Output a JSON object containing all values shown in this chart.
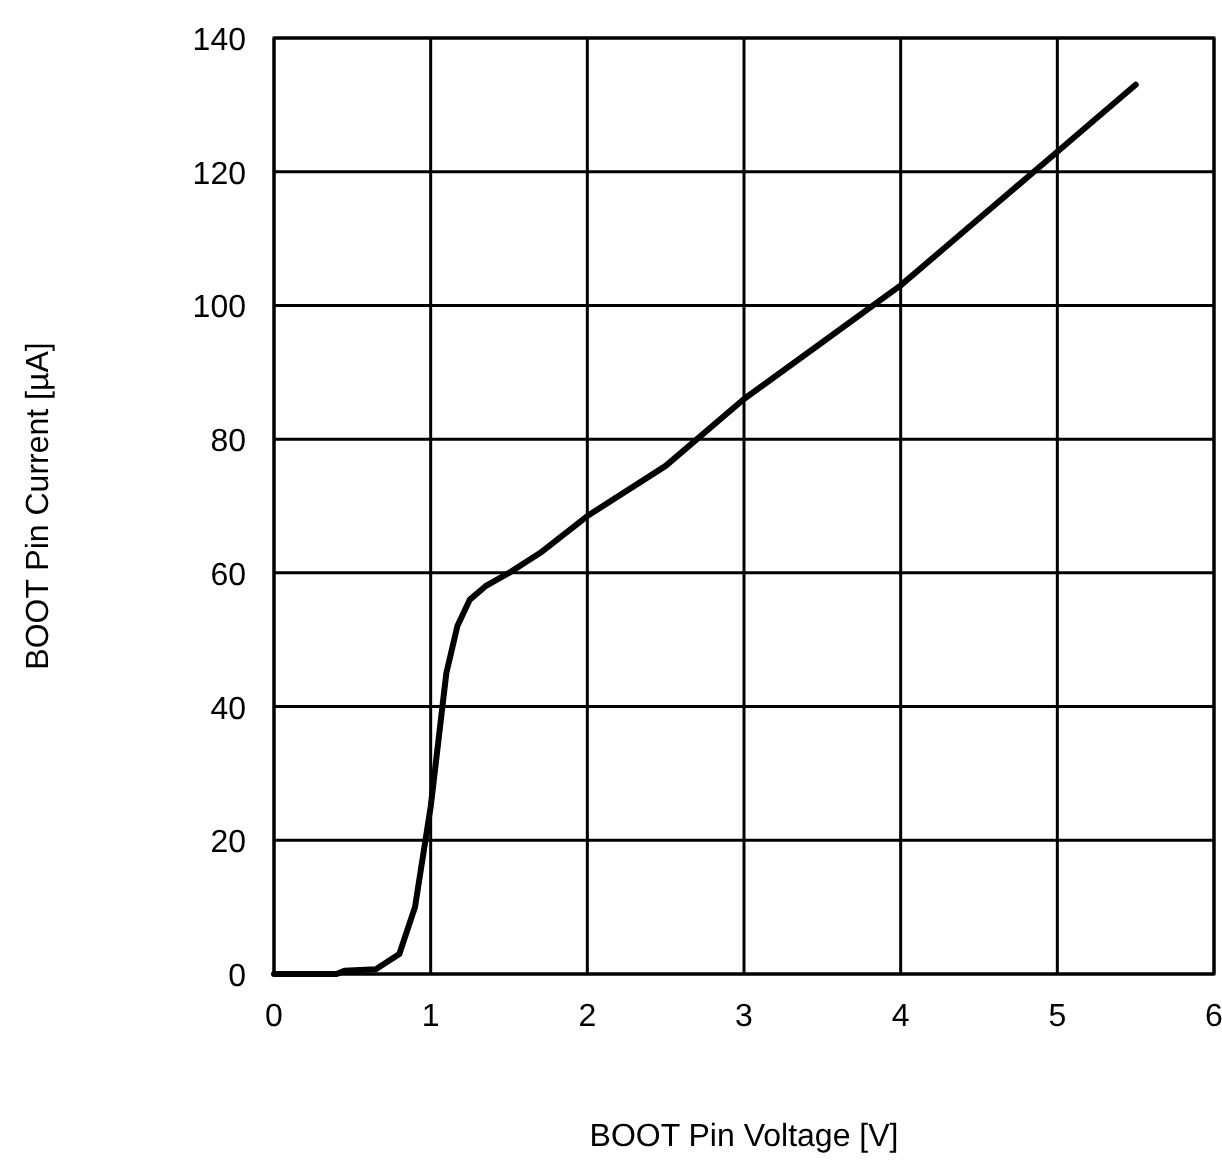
{
  "chart_data": {
    "type": "line",
    "xlabel": "BOOT Pin Voltage [V]",
    "ylabel": "BOOT Pin Current [µA]",
    "xlim": [
      0,
      6
    ],
    "ylim": [
      0,
      140
    ],
    "xticks": [
      0,
      1,
      2,
      3,
      4,
      5,
      6
    ],
    "yticks": [
      0,
      20,
      40,
      60,
      80,
      100,
      120,
      140
    ],
    "grid": true,
    "line_style": "solid",
    "series": [
      {
        "color": "#000000",
        "x": [
          0,
          0.4,
          0.45,
          0.65,
          0.8,
          0.9,
          1.0,
          1.05,
          1.1,
          1.17,
          1.25,
          1.35,
          1.5,
          1.7,
          2,
          2.5,
          3,
          3.5,
          4,
          4.5,
          5,
          5.3,
          5.5
        ],
        "values": [
          0,
          0,
          0.5,
          0.7,
          3,
          10,
          25,
          35,
          45,
          52,
          56,
          58,
          60,
          63,
          68.5,
          76,
          86,
          94.5,
          103,
          113,
          123,
          129,
          133
        ]
      }
    ]
  }
}
